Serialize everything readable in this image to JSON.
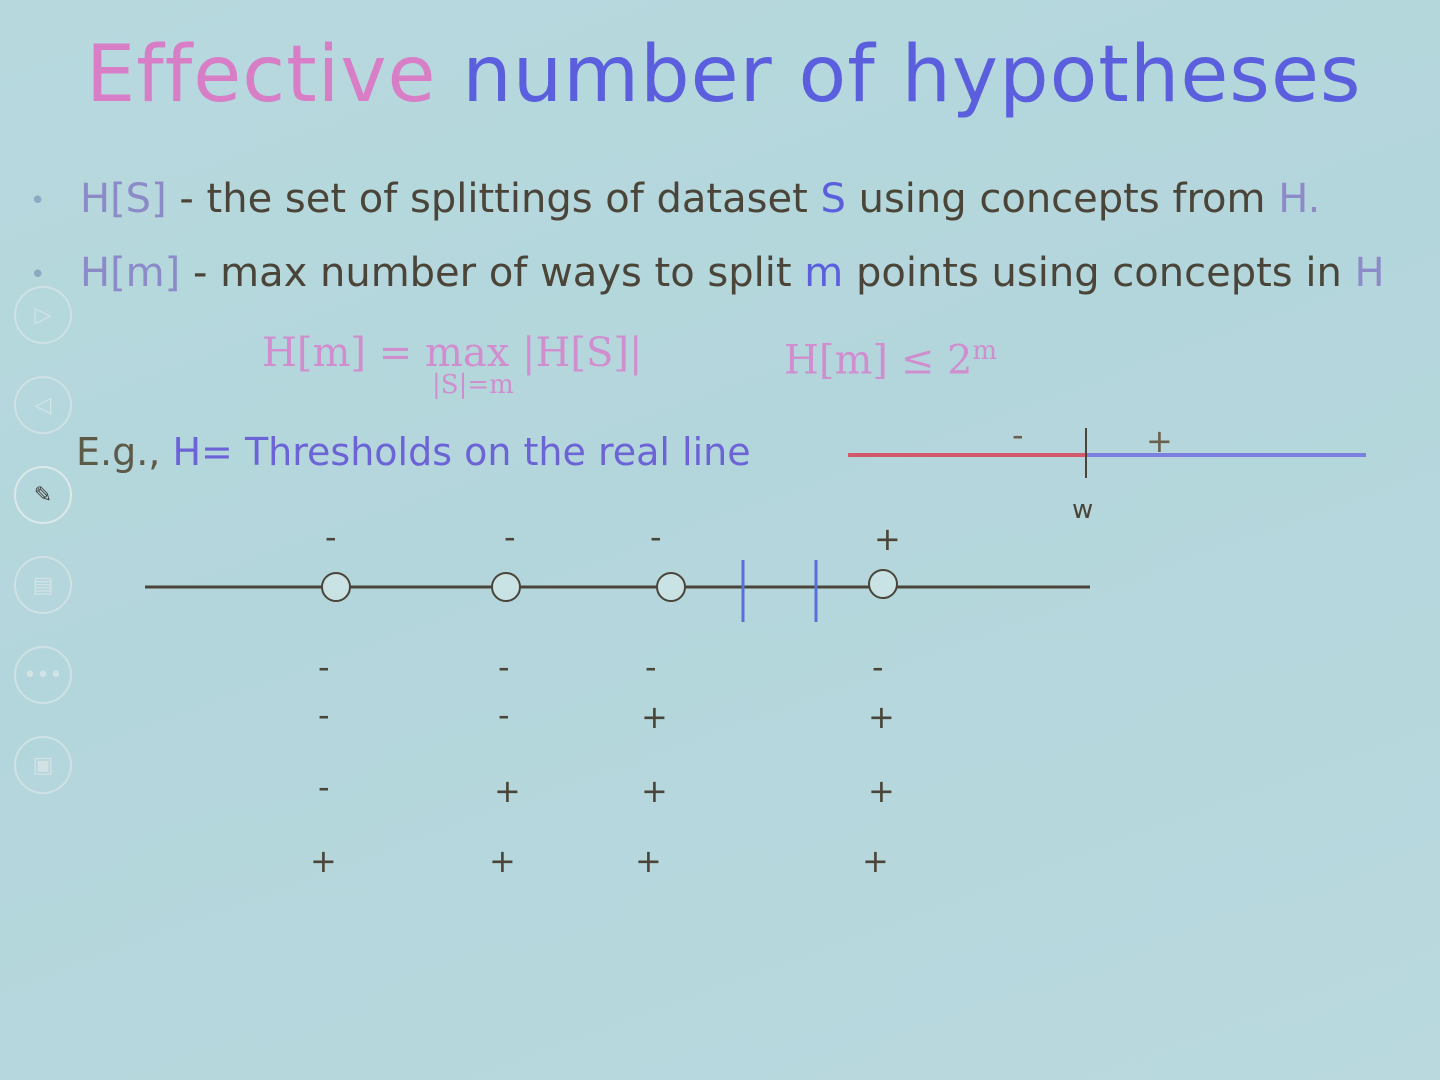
{
  "title": {
    "part1": "Effective",
    "part2": "number of hypotheses"
  },
  "bullets": [
    {
      "pre": "H[S]",
      "t1": " - the set of splittings of dataset ",
      "hl": "S",
      "t2": " using concepts from ",
      "post": "H."
    },
    {
      "pre": "H[m]",
      "t1": " - max number of ways to split ",
      "hl": "m",
      "t2": " points using concepts in ",
      "post": "H"
    }
  ],
  "formula1": {
    "main": "H[m] = max |H[S]|",
    "sub": "|S|=m"
  },
  "formula2": {
    "main": "H[m] ≤ 2",
    "sup": "m"
  },
  "example": {
    "pre": "E.g., ",
    "text": "H= Thresholds on the real line"
  },
  "threshold_diagram": {
    "minus": "-",
    "plus": "+",
    "w": "w"
  },
  "point_labels_top": [
    "-",
    "-",
    "-",
    "+"
  ],
  "labeling_rows": [
    [
      "-",
      "-",
      "-",
      "-"
    ],
    [
      "-",
      "-",
      "+",
      "+"
    ],
    [
      "-",
      "+",
      "+",
      "+"
    ],
    [
      "+",
      "+",
      "+",
      "+"
    ]
  ],
  "left_controls": [
    {
      "icon": "play-icon"
    },
    {
      "icon": "back-icon"
    },
    {
      "icon": "pen-icon"
    },
    {
      "icon": "slides-icon"
    },
    {
      "icon": "more-icon"
    },
    {
      "icon": "screen-icon"
    }
  ],
  "colors": {
    "background": "#b5d8dd",
    "title_pink": "#d87ec6",
    "title_blue": "#5b5fde",
    "formula_pink": "#d18ecf",
    "line_red": "#d35a6a",
    "line_blue": "#7c7fe0",
    "point_fill": "#c9e2e4",
    "threshold_mark": "#5b6fd9"
  }
}
